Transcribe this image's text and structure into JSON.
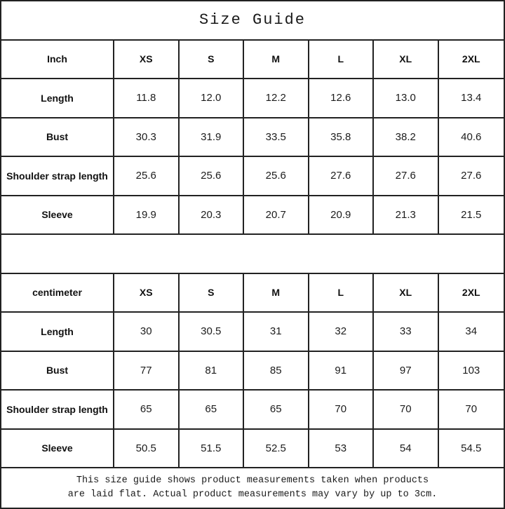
{
  "title": "Size Guide",
  "colors": {
    "background": "#ffffff",
    "border": "#222222",
    "text": "#111111"
  },
  "tables": [
    {
      "unit": "Inch",
      "sizes": [
        "XS",
        "S",
        "M",
        "L",
        "XL",
        "2XL"
      ],
      "rows": [
        {
          "label": "Length",
          "values": [
            "11.8",
            "12.0",
            "12.2",
            "12.6",
            "13.0",
            "13.4"
          ]
        },
        {
          "label": "Bust",
          "values": [
            "30.3",
            "31.9",
            "33.5",
            "35.8",
            "38.2",
            "40.6"
          ]
        },
        {
          "label": "Shoulder strap length",
          "values": [
            "25.6",
            "25.6",
            "25.6",
            "27.6",
            "27.6",
            "27.6"
          ]
        },
        {
          "label": "Sleeve",
          "values": [
            "19.9",
            "20.3",
            "20.7",
            "20.9",
            "21.3",
            "21.5"
          ]
        }
      ]
    },
    {
      "unit": "centimeter",
      "sizes": [
        "XS",
        "S",
        "M",
        "L",
        "XL",
        "2XL"
      ],
      "rows": [
        {
          "label": "Length",
          "values": [
            "30",
            "30.5",
            "31",
            "32",
            "33",
            "34"
          ]
        },
        {
          "label": "Bust",
          "values": [
            "77",
            "81",
            "85",
            "91",
            "97",
            "103"
          ]
        },
        {
          "label": "Shoulder strap length",
          "values": [
            "65",
            "65",
            "65",
            "70",
            "70",
            "70"
          ]
        },
        {
          "label": "Sleeve",
          "values": [
            "50.5",
            "51.5",
            "52.5",
            "53",
            "54",
            "54.5"
          ]
        }
      ]
    }
  ],
  "note": {
    "line1": "This size guide shows product measurements taken when products",
    "line2": "are laid flat. Actual product measurements may vary by up to 3cm."
  }
}
